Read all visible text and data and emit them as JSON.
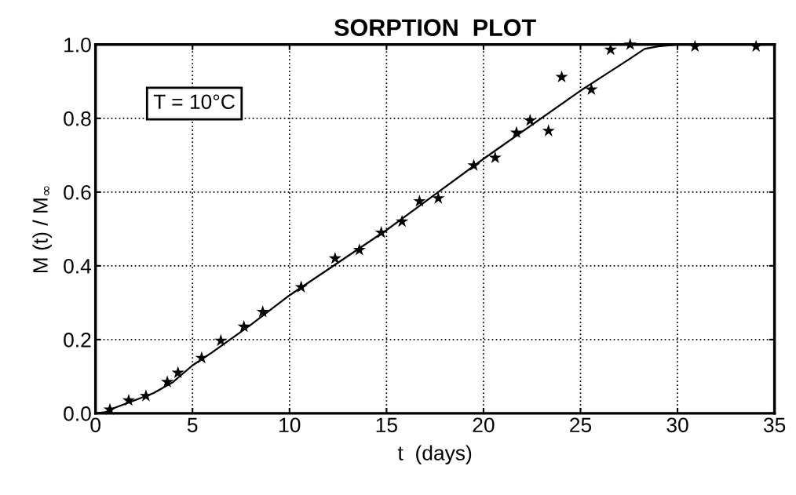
{
  "chart_data": {
    "type": "scatter",
    "title": "SORPTION  PLOT",
    "xlabel": "t  (days)",
    "ylabel": "M (t) / M$_{∞}$",
    "annotations": [
      "T = 10°C"
    ],
    "series": [
      {
        "color": "#000000",
        "marker": "star",
        "x": [
          0.74,
          1.71,
          2.6,
          3.7,
          4.25,
          5.47,
          6.46,
          7.65,
          8.62,
          10.6,
          12.35,
          13.6,
          14.73,
          15.8,
          16.7,
          17.67,
          19.5,
          20.6,
          21.7,
          22.4,
          23.35,
          24.03,
          25.56,
          26.55,
          27.56,
          30.9,
          34.05
        ],
        "values": [
          0.01,
          0.035,
          0.047,
          0.085,
          0.11,
          0.15,
          0.197,
          0.235,
          0.275,
          0.342,
          0.42,
          0.443,
          0.49,
          0.52,
          0.575,
          0.583,
          0.672,
          0.693,
          0.761,
          0.794,
          0.766,
          0.912,
          0.878,
          0.986,
          1.0,
          0.995,
          0.995
        ]
      },
      {
        "type": "line",
        "color": "#000000",
        "marker": "none",
        "line_style": "solid",
        "x": [
          0,
          0.5,
          1,
          2,
          3,
          4,
          5,
          6,
          8,
          10,
          15,
          20,
          25,
          27.5,
          28.3,
          29,
          30,
          35
        ],
        "values": [
          0,
          0.003,
          0.015,
          0.035,
          0.055,
          0.085,
          0.13,
          0.165,
          0.24,
          0.32,
          0.497,
          0.69,
          0.875,
          0.96,
          0.988,
          0.995,
          1.0,
          1.0
        ]
      }
    ],
    "xlim": [
      0,
      35
    ],
    "xticks": [
      0,
      5,
      10,
      15,
      20,
      25,
      30,
      35
    ],
    "ylim": [
      0,
      1
    ],
    "yticks": [
      {
        "value": 0,
        "label": "0.0"
      },
      {
        "value": 0.2,
        "label": "0.2"
      },
      {
        "value": 0.4,
        "label": "0.4"
      },
      {
        "value": 0.6,
        "label": "0.6"
      },
      {
        "value": 0.8,
        "label": "0.8"
      },
      {
        "value": 1,
        "label": "1.0"
      }
    ],
    "grid": true
  }
}
